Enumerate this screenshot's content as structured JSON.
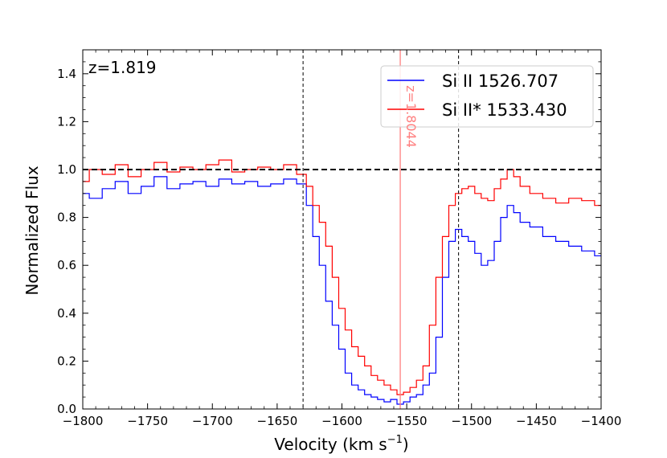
{
  "chart_data": {
    "type": "line",
    "title": "",
    "xlabel": "Velocity (km s",
    "xlabel_sup": "−1",
    "xlabel_close": ")",
    "ylabel": "Normalized Flux",
    "xlim": [
      -1800,
      -1400
    ],
    "ylim": [
      0.0,
      1.5
    ],
    "xticks": [
      -1800,
      -1750,
      -1700,
      -1650,
      -1600,
      -1550,
      -1500,
      -1450,
      -1400
    ],
    "xtick_labels": [
      "−1800",
      "−1750",
      "−1700",
      "−1650",
      "−1600",
      "−1550",
      "−1500",
      "−1450",
      "−1400"
    ],
    "yticks": [
      0.0,
      0.2,
      0.4,
      0.6,
      0.8,
      1.0,
      1.2,
      1.4
    ],
    "ytick_labels": [
      "0.0",
      "0.2",
      "0.4",
      "0.6",
      "0.8",
      "1.0",
      "1.2",
      "1.4"
    ],
    "continuum": 1.0,
    "vlines": [
      -1630,
      -1510
    ],
    "redshift_label": "z=1.819",
    "component_line": {
      "x": -1555,
      "label": "z=1.8044",
      "color": "#ff8080"
    },
    "legend_position": "top-right",
    "series": [
      {
        "name": "Si II 1526.707",
        "color": "#0000ff",
        "x": [
          -1800,
          -1790,
          -1780,
          -1770,
          -1760,
          -1750,
          -1740,
          -1730,
          -1720,
          -1710,
          -1700,
          -1690,
          -1680,
          -1670,
          -1660,
          -1650,
          -1640,
          -1630,
          -1625,
          -1620,
          -1615,
          -1610,
          -1605,
          -1600,
          -1595,
          -1590,
          -1585,
          -1580,
          -1575,
          -1570,
          -1565,
          -1560,
          -1555,
          -1550,
          -1545,
          -1540,
          -1535,
          -1530,
          -1525,
          -1520,
          -1515,
          -1510,
          -1505,
          -1500,
          -1495,
          -1490,
          -1485,
          -1480,
          -1475,
          -1470,
          -1465,
          -1460,
          -1450,
          -1440,
          -1430,
          -1420,
          -1410,
          -1400
        ],
        "y": [
          0.9,
          0.88,
          0.92,
          0.95,
          0.9,
          0.93,
          0.97,
          0.92,
          0.94,
          0.95,
          0.93,
          0.96,
          0.94,
          0.95,
          0.93,
          0.94,
          0.96,
          0.94,
          0.85,
          0.72,
          0.6,
          0.45,
          0.35,
          0.25,
          0.15,
          0.1,
          0.08,
          0.06,
          0.05,
          0.04,
          0.03,
          0.04,
          0.02,
          0.03,
          0.05,
          0.06,
          0.1,
          0.15,
          0.3,
          0.55,
          0.7,
          0.75,
          0.72,
          0.7,
          0.65,
          0.6,
          0.62,
          0.7,
          0.8,
          0.85,
          0.82,
          0.78,
          0.76,
          0.72,
          0.7,
          0.68,
          0.66,
          0.64
        ]
      },
      {
        "name": "Si II* 1533.430",
        "color": "#ff0000",
        "x": [
          -1800,
          -1790,
          -1780,
          -1770,
          -1760,
          -1750,
          -1740,
          -1730,
          -1720,
          -1710,
          -1700,
          -1690,
          -1680,
          -1670,
          -1660,
          -1650,
          -1640,
          -1630,
          -1625,
          -1620,
          -1615,
          -1610,
          -1605,
          -1600,
          -1595,
          -1590,
          -1585,
          -1580,
          -1575,
          -1570,
          -1565,
          -1560,
          -1555,
          -1550,
          -1545,
          -1540,
          -1535,
          -1530,
          -1525,
          -1520,
          -1515,
          -1510,
          -1505,
          -1500,
          -1495,
          -1490,
          -1485,
          -1480,
          -1475,
          -1470,
          -1465,
          -1460,
          -1450,
          -1440,
          -1430,
          -1420,
          -1410,
          -1400
        ],
        "y": [
          0.95,
          1.0,
          0.98,
          1.02,
          0.97,
          1.0,
          1.03,
          0.99,
          1.01,
          1.0,
          1.02,
          1.04,
          0.99,
          1.0,
          1.01,
          1.0,
          1.02,
          0.98,
          0.93,
          0.85,
          0.78,
          0.68,
          0.55,
          0.42,
          0.33,
          0.26,
          0.22,
          0.18,
          0.14,
          0.12,
          0.1,
          0.08,
          0.06,
          0.07,
          0.09,
          0.12,
          0.18,
          0.35,
          0.55,
          0.72,
          0.85,
          0.9,
          0.92,
          0.93,
          0.9,
          0.88,
          0.87,
          0.92,
          0.96,
          1.0,
          0.97,
          0.93,
          0.9,
          0.88,
          0.86,
          0.88,
          0.87,
          0.85
        ]
      }
    ]
  }
}
